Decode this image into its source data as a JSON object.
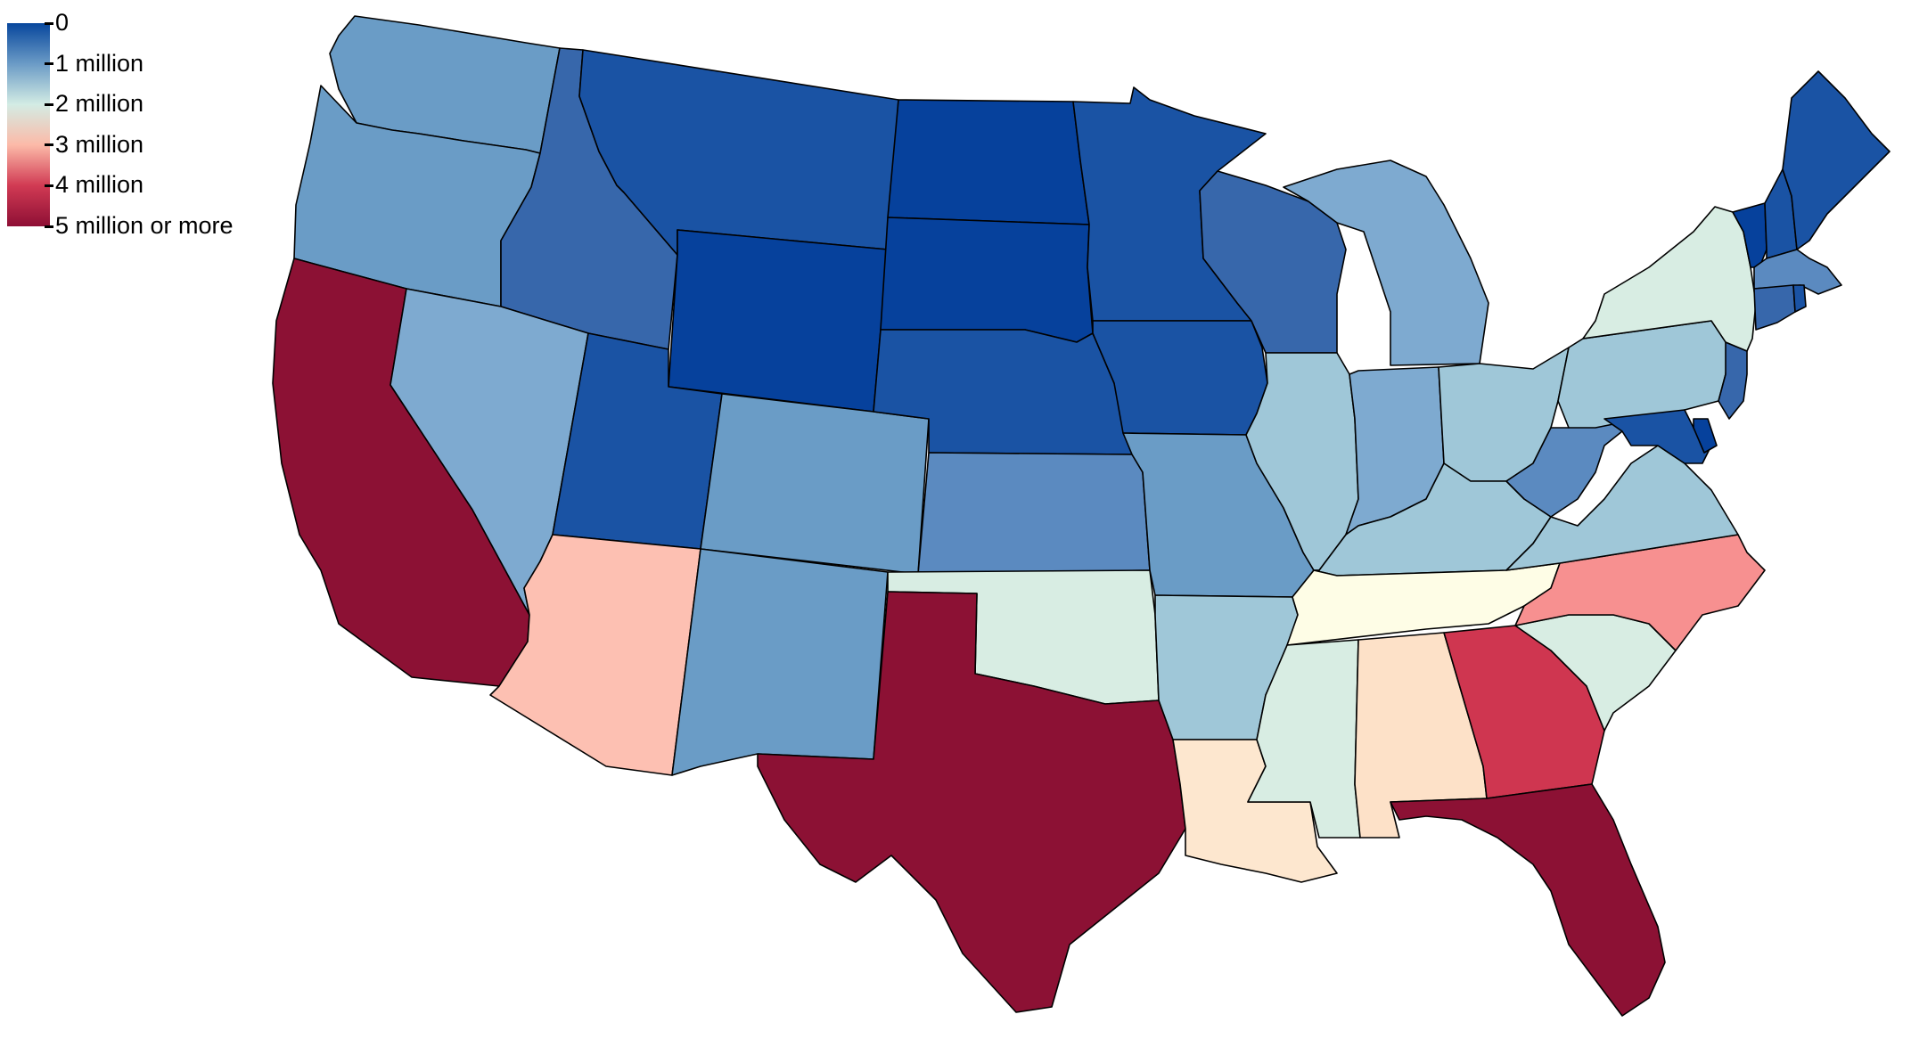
{
  "legend": {
    "labels": [
      "0",
      "1 million",
      "2 million",
      "3 million",
      "4 million",
      "5 million or more"
    ],
    "colors": [
      "#08479d",
      "#6b9bc6",
      "#d3ece4",
      "#fcbaa8",
      "#d13a53",
      "#8e0f35"
    ]
  },
  "palette": {
    "c0": "#06419c",
    "c1": "#1a53a4",
    "c2": "#3767ab",
    "c3": "#5b8ac0",
    "c4": "#6a9cc6",
    "c5": "#7eaad0",
    "c6": "#9fc7d8",
    "c7": "#d8ede3",
    "c8": "#fefde6",
    "c9": "#fde7cf",
    "c10": "#fde1c8",
    "c11": "#fdc0b2",
    "c12": "#f79090",
    "c13": "#cf3650",
    "c14": "#8c1134"
  },
  "states": {
    "WA": "c4",
    "OR": "c4",
    "CA": "c14",
    "NV": "c5",
    "ID": "c2",
    "MT": "c1",
    "WY": "c0",
    "UT": "c1",
    "AZ": "c11",
    "CO": "c4",
    "NM": "c4",
    "ND": "c0",
    "SD": "c0",
    "NE": "c1",
    "KS": "c3",
    "OK": "c7",
    "TX": "c14",
    "MN": "c1",
    "IA": "c1",
    "MO": "c4",
    "AR": "c6",
    "LA": "c9",
    "WI": "c2",
    "IL": "c6",
    "MI": "c5",
    "IN": "c5",
    "OH": "c6",
    "KY": "c6",
    "TN": "c8",
    "MS": "c7",
    "AL": "c10",
    "GA": "c13",
    "FL": "c14",
    "SC": "c7",
    "NC": "c12",
    "VA": "c6",
    "WV": "c3",
    "PA": "c6",
    "NY": "c7",
    "VT": "c0",
    "NH": "c1",
    "ME": "c1",
    "MA": "c3",
    "CT": "c2",
    "RI": "c1",
    "NJ": "c2",
    "DE": "c0",
    "MD": "c1"
  }
}
